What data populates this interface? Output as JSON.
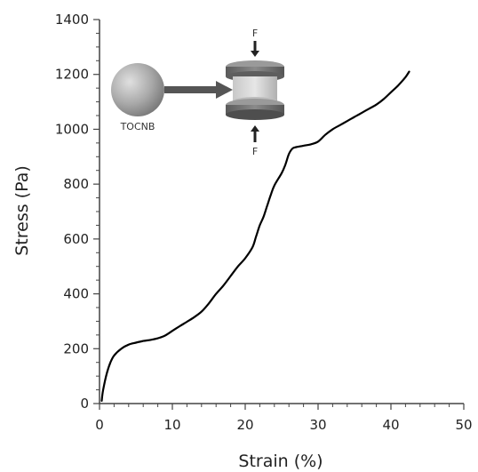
{
  "chart_data": {
    "type": "line",
    "xlabel": "Strain (%)",
    "ylabel": "Stress (Pa)",
    "xlim": [
      0,
      50
    ],
    "ylim": [
      0,
      1400
    ],
    "xticks": [
      0,
      10,
      20,
      30,
      40,
      50
    ],
    "yticks": [
      0,
      200,
      400,
      600,
      800,
      1000,
      1200,
      1400
    ],
    "grid": false,
    "series": [
      {
        "color": "#000000",
        "x": [
          0.3,
          0.5,
          1,
          1.5,
          2,
          3,
          4,
          5,
          6,
          7,
          8,
          9,
          10,
          11,
          12,
          13,
          14,
          15,
          16,
          17,
          18,
          19,
          20,
          21,
          21.5,
          22,
          22.5,
          23,
          23.5,
          24,
          25,
          25.5,
          26,
          26.5,
          27,
          28,
          29,
          30,
          31,
          32,
          33,
          34,
          35,
          36,
          37,
          38,
          39,
          40,
          41,
          42,
          42.5
        ],
        "y": [
          10,
          50,
          110,
          150,
          175,
          200,
          215,
          222,
          228,
          232,
          238,
          248,
          265,
          282,
          298,
          315,
          335,
          365,
          400,
          430,
          465,
          500,
          530,
          570,
          610,
          650,
          680,
          720,
          760,
          795,
          840,
          870,
          910,
          930,
          935,
          940,
          945,
          955,
          980,
          1000,
          1015,
          1030,
          1045,
          1060,
          1075,
          1090,
          1110,
          1135,
          1160,
          1190,
          1210
        ]
      }
    ],
    "inset": {
      "label": "TOCNB",
      "force_top": "F",
      "force_bottom": "F"
    }
  }
}
